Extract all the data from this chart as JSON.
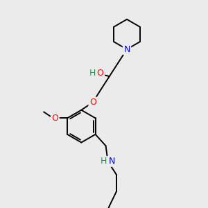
{
  "background_color": "#ebebeb",
  "atom_colors": {
    "N": "#0000cd",
    "O": "#ff0000",
    "HN": "#2e8b57",
    "C": "#000000"
  },
  "bond_color": "#000000",
  "bond_width": 1.4,
  "figsize": [
    3.0,
    3.0
  ],
  "dpi": 100
}
